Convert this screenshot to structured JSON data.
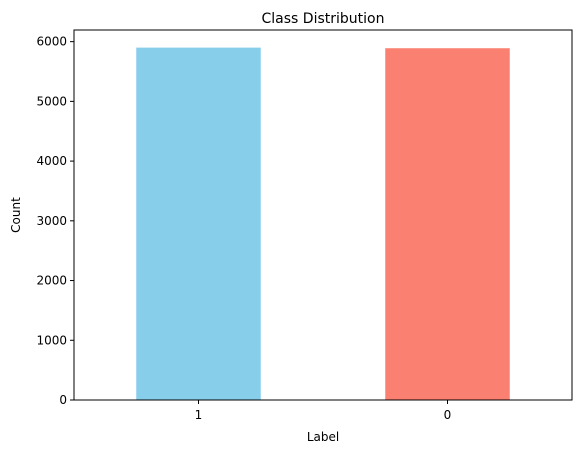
{
  "chart_data": {
    "type": "bar",
    "title": "Class Distribution",
    "xlabel": "Label",
    "ylabel": "Count",
    "categories": [
      "1",
      "0"
    ],
    "values": [
      5900,
      5890
    ],
    "colors": [
      "#87ceeb",
      "#fa8072"
    ],
    "ylim": [
      0,
      6195
    ],
    "yticks": [
      0,
      1000,
      2000,
      3000,
      4000,
      5000,
      6000
    ],
    "grid": false,
    "legend": "none"
  }
}
